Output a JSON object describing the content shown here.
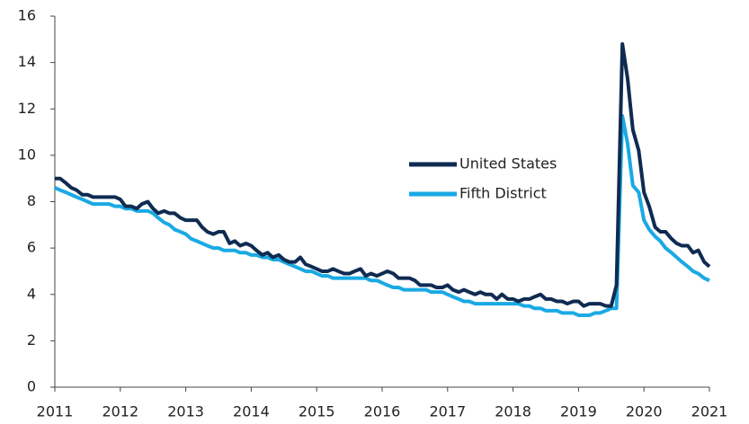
{
  "chart_data": {
    "type": "line",
    "x": [
      2011,
      2011.08,
      2011.17,
      2011.25,
      2011.33,
      2011.42,
      2011.5,
      2011.58,
      2011.67,
      2011.75,
      2011.83,
      2011.92,
      2012,
      2012.08,
      2012.17,
      2012.25,
      2012.33,
      2012.42,
      2012.5,
      2012.58,
      2012.67,
      2012.75,
      2012.83,
      2012.92,
      2013,
      2013.08,
      2013.17,
      2013.25,
      2013.33,
      2013.42,
      2013.5,
      2013.58,
      2013.67,
      2013.75,
      2013.83,
      2013.92,
      2014,
      2014.08,
      2014.17,
      2014.25,
      2014.33,
      2014.42,
      2014.5,
      2014.58,
      2014.67,
      2014.75,
      2014.83,
      2014.92,
      2015,
      2015.08,
      2015.17,
      2015.25,
      2015.33,
      2015.42,
      2015.5,
      2015.58,
      2015.67,
      2015.75,
      2015.83,
      2015.92,
      2016,
      2016.08,
      2016.17,
      2016.25,
      2016.33,
      2016.42,
      2016.5,
      2016.58,
      2016.67,
      2016.75,
      2016.83,
      2016.92,
      2017,
      2017.08,
      2017.17,
      2017.25,
      2017.33,
      2017.42,
      2017.5,
      2017.58,
      2017.67,
      2017.75,
      2017.83,
      2017.92,
      2018,
      2018.08,
      2018.17,
      2018.25,
      2018.33,
      2018.42,
      2018.5,
      2018.58,
      2018.67,
      2018.75,
      2018.83,
      2018.92,
      2019,
      2019.08,
      2019.17,
      2019.25,
      2019.33,
      2019.42,
      2019.5,
      2019.58,
      2019.67,
      2019.75,
      2019.83,
      2019.92,
      2020,
      2020.08,
      2020.17,
      2020.25,
      2020.33,
      2020.42,
      2020.5,
      2020.58,
      2020.67,
      2020.75,
      2020.83,
      2020.92,
      2021
    ],
    "series": [
      {
        "name": "United States",
        "color": "#0f2b52",
        "values": [
          9.0,
          9.0,
          8.8,
          8.6,
          8.5,
          8.3,
          8.3,
          8.2,
          8.2,
          8.2,
          8.2,
          8.2,
          8.1,
          7.8,
          7.8,
          7.7,
          7.9,
          8.0,
          7.7,
          7.5,
          7.6,
          7.5,
          7.5,
          7.3,
          7.2,
          7.2,
          7.2,
          6.9,
          6.7,
          6.6,
          6.7,
          6.7,
          6.2,
          6.3,
          6.1,
          6.2,
          6.1,
          5.9,
          5.7,
          5.8,
          5.6,
          5.7,
          5.5,
          5.4,
          5.4,
          5.6,
          5.3,
          5.2,
          5.1,
          5.0,
          5.0,
          5.1,
          5.0,
          4.9,
          4.9,
          5.0,
          5.1,
          4.8,
          4.9,
          4.8,
          4.9,
          5.0,
          4.9,
          4.7,
          4.7,
          4.7,
          4.6,
          4.4,
          4.4,
          4.4,
          4.3,
          4.3,
          4.4,
          4.2,
          4.1,
          4.2,
          4.1,
          4.0,
          4.1,
          4.0,
          4.0,
          3.8,
          4.0,
          3.8,
          3.8,
          3.7,
          3.8,
          3.8,
          3.9,
          4.0,
          3.8,
          3.8,
          3.7,
          3.7,
          3.6,
          3.7,
          3.7,
          3.5,
          3.6,
          3.6,
          3.6,
          3.5,
          3.5,
          4.4,
          14.8,
          13.3,
          11.1,
          10.2,
          8.4,
          7.8,
          6.9,
          6.7,
          6.7,
          6.4,
          6.2,
          6.1,
          6.1,
          5.8,
          5.9,
          5.4,
          5.2
        ]
      },
      {
        "name": "Fifth District",
        "color": "#1aa9e3",
        "values": [
          8.6,
          8.5,
          8.4,
          8.3,
          8.2,
          8.1,
          8.0,
          7.9,
          7.9,
          7.9,
          7.9,
          7.8,
          7.8,
          7.7,
          7.7,
          7.6,
          7.6,
          7.6,
          7.5,
          7.3,
          7.1,
          7.0,
          6.8,
          6.7,
          6.6,
          6.4,
          6.3,
          6.2,
          6.1,
          6.0,
          6.0,
          5.9,
          5.9,
          5.9,
          5.8,
          5.8,
          5.7,
          5.7,
          5.6,
          5.6,
          5.5,
          5.5,
          5.4,
          5.3,
          5.2,
          5.1,
          5.0,
          5.0,
          4.9,
          4.8,
          4.8,
          4.7,
          4.7,
          4.7,
          4.7,
          4.7,
          4.7,
          4.7,
          4.6,
          4.6,
          4.5,
          4.4,
          4.3,
          4.3,
          4.2,
          4.2,
          4.2,
          4.2,
          4.2,
          4.1,
          4.1,
          4.1,
          4.0,
          3.9,
          3.8,
          3.7,
          3.7,
          3.6,
          3.6,
          3.6,
          3.6,
          3.6,
          3.6,
          3.6,
          3.6,
          3.6,
          3.5,
          3.5,
          3.4,
          3.4,
          3.3,
          3.3,
          3.3,
          3.2,
          3.2,
          3.2,
          3.1,
          3.1,
          3.1,
          3.2,
          3.2,
          3.3,
          3.4,
          3.4,
          11.7,
          10.5,
          8.7,
          8.4,
          7.2,
          6.8,
          6.5,
          6.3,
          6.0,
          5.8,
          5.6,
          5.4,
          5.2,
          5.0,
          4.9,
          4.7,
          4.6
        ]
      }
    ],
    "xlim": [
      2011,
      2021
    ],
    "xticks": [
      2011,
      2012,
      2013,
      2014,
      2015,
      2016,
      2017,
      2018,
      2019,
      2020,
      2021
    ],
    "ylim": [
      0,
      16
    ],
    "yticks": [
      0,
      2,
      4,
      6,
      8,
      10,
      12,
      14,
      16
    ]
  }
}
